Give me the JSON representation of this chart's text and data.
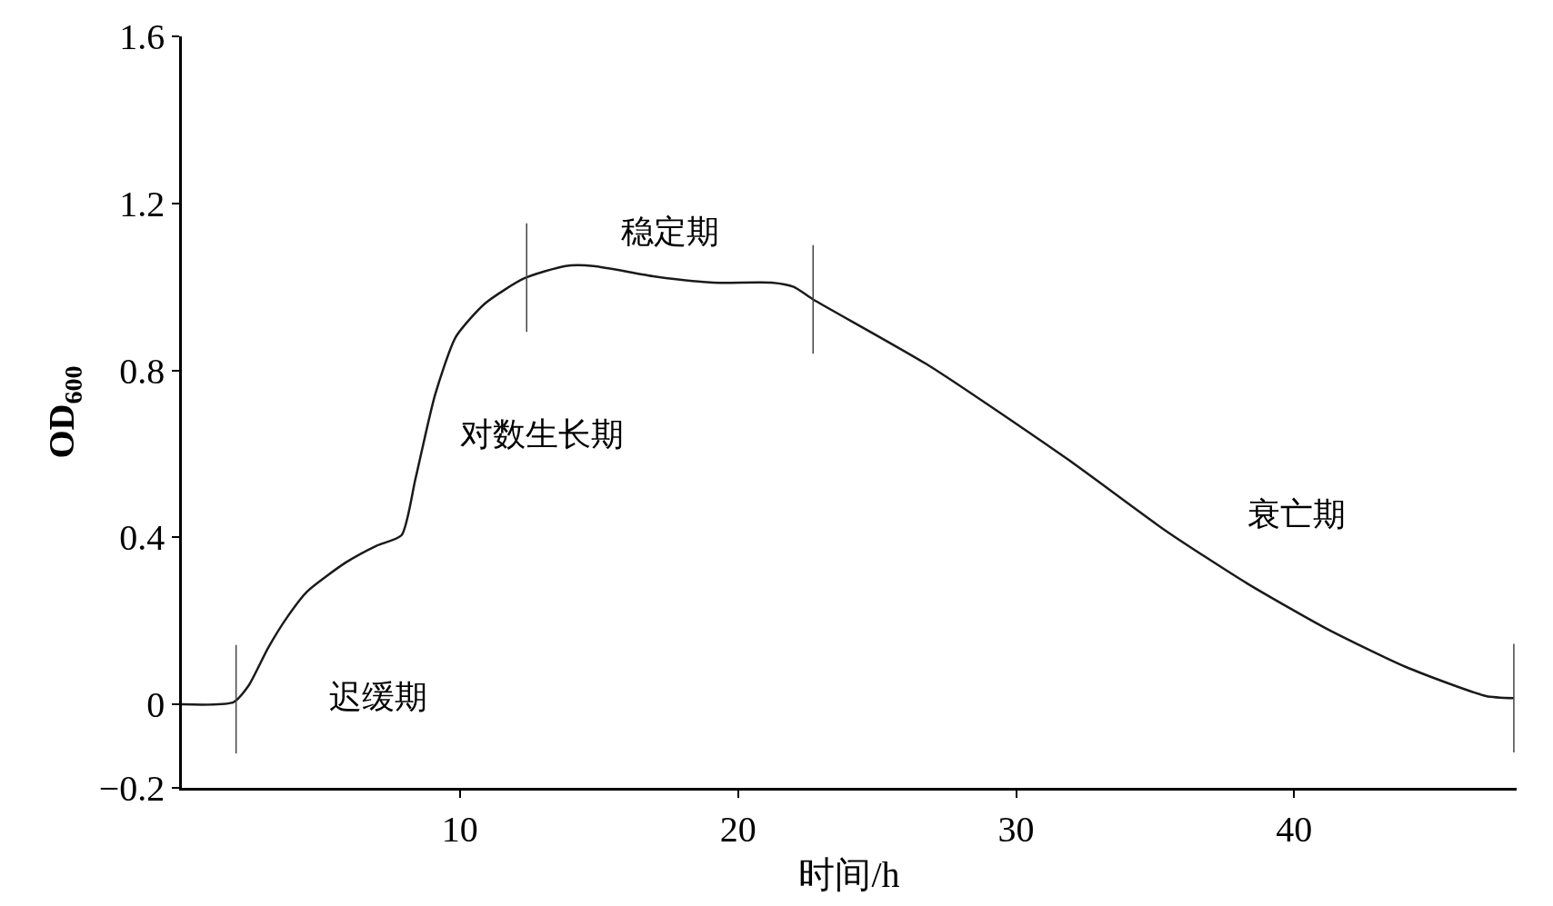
{
  "chart_data": {
    "type": "line",
    "xlabel": "时间/h",
    "ylabel": "OD$_{600}$",
    "x": [
      0,
      1.85,
      2.4,
      3.1,
      3.8,
      4.5,
      5.9,
      7.0,
      7.9,
      8.4,
      9.1,
      9.85,
      10.9,
      12.3,
      13.8,
      14.8,
      17.0,
      19.1,
      21.2,
      22.0,
      22.7,
      26.9,
      31.9,
      35.4,
      38.3,
      41.2,
      44.0,
      46.9,
      47.9
    ],
    "series": [
      {
        "color": "#1a1a1a",
        "values": [
          0,
          0.005,
          0.045,
          0.135,
          0.21,
          0.27,
          0.34,
          0.38,
          0.405,
          0.54,
          0.74,
          0.88,
          0.96,
          1.02,
          1.05,
          1.05,
          1.025,
          1.01,
          1.01,
          1.0,
          0.97,
          0.81,
          0.585,
          0.415,
          0.29,
          0.18,
          0.09,
          0.02,
          0.015
        ]
      }
    ],
    "xlim": [
      0,
      48
    ],
    "xticks": [
      10,
      20,
      30,
      40
    ],
    "ylim": [
      -0.2,
      1.6
    ],
    "yticks": [
      {
        "value": -0.2,
        "label": "−0.2"
      },
      0,
      0.4,
      0.8,
      1.2,
      1.6
    ],
    "ref_lines": [
      {
        "axis": "x",
        "value": 1.95
      },
      {
        "axis": "x",
        "value": 12.4
      },
      {
        "axis": "x",
        "value": 22.7
      },
      {
        "axis": "x",
        "value": 47.9
      }
    ],
    "annotations": [
      "迟缓期",
      "对数生长期",
      "稳定期",
      "衰亡期"
    ],
    "marker": "none",
    "line_style": "solid"
  }
}
